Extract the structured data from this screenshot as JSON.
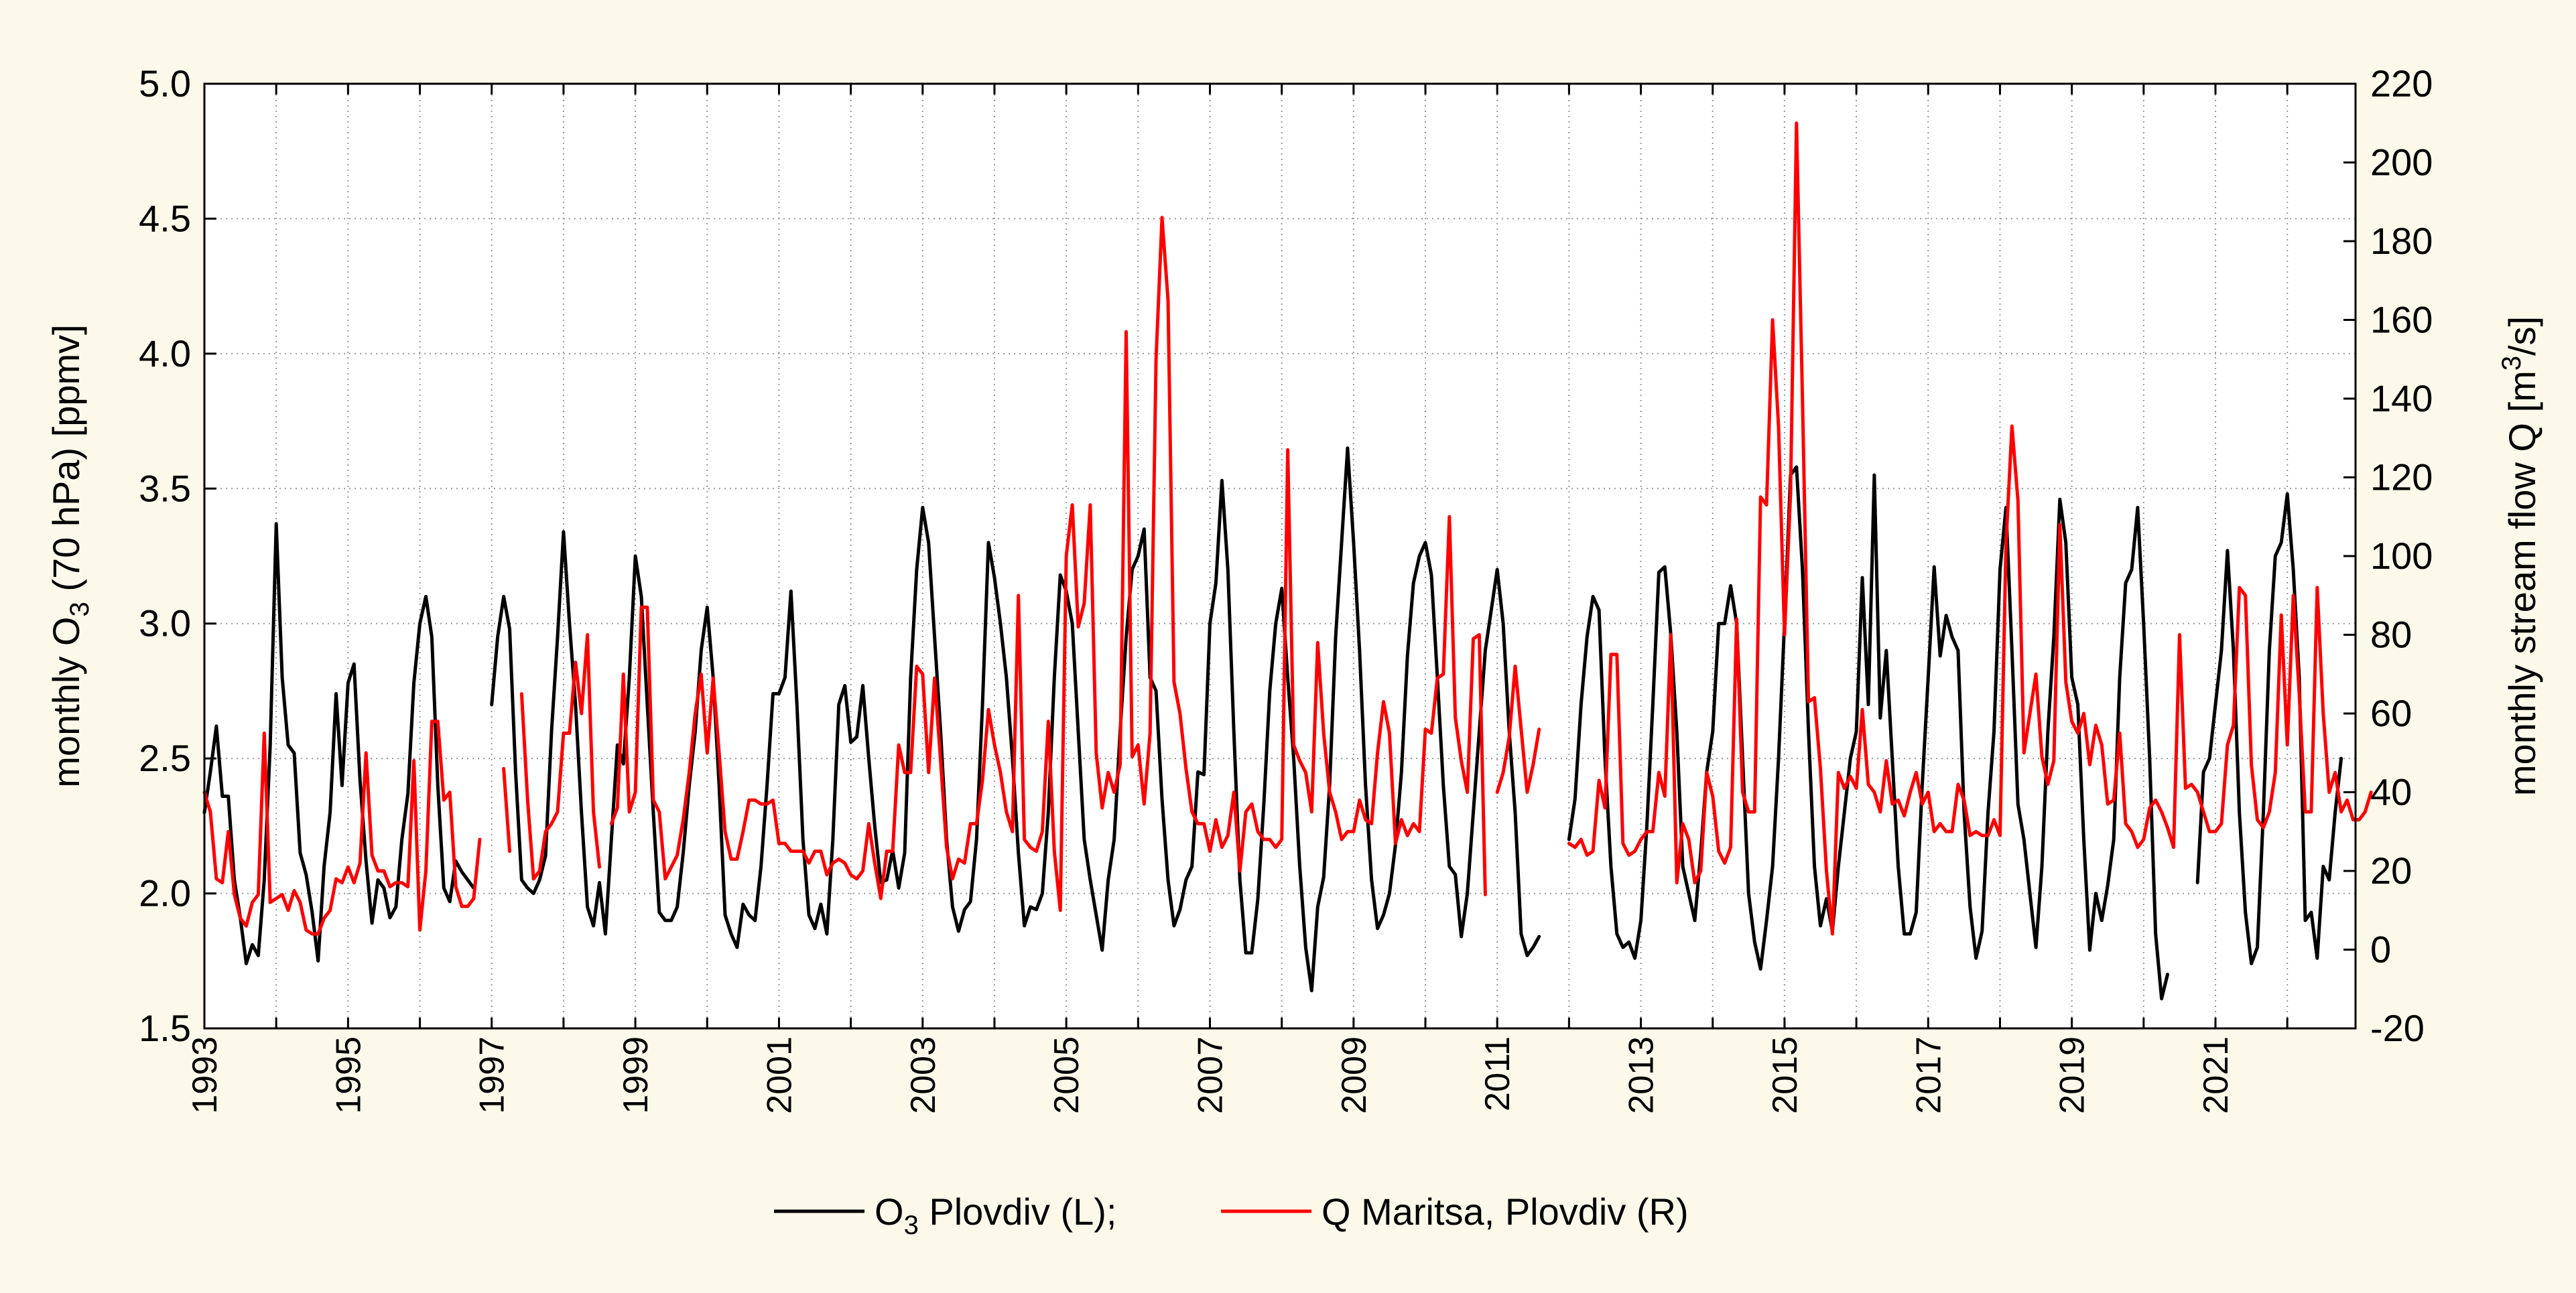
{
  "chart_data": {
    "type": "line",
    "title": "",
    "x_start_year": 1993,
    "x_end_year": 2022,
    "xlim": [
      1993,
      2022.95
    ],
    "x_tick_labels": [
      "1993",
      "1995",
      "1997",
      "1999",
      "2001",
      "2003",
      "2005",
      "2007",
      "2009",
      "2011",
      "2013",
      "2015",
      "2017",
      "2019",
      "2021"
    ],
    "ylabel_left": {
      "prefix": "monthly O",
      "sub": "3",
      "suffix": " (70 hPa) [ppmv]"
    },
    "ylabel_right": {
      "prefix": "monthly stream flow Q [m",
      "sup": "3",
      "suffix": "/s]"
    },
    "ylim_left": [
      1.5,
      5.0
    ],
    "yticks_left": [
      "1.5",
      "2.0",
      "2.5",
      "3.0",
      "3.5",
      "4.0",
      "4.5",
      "5.0"
    ],
    "ylim_right": [
      -20,
      220
    ],
    "yticks_right": [
      "-20",
      "0",
      "20",
      "40",
      "60",
      "80",
      "100",
      "120",
      "140",
      "160",
      "180",
      "200",
      "220"
    ],
    "grid": true,
    "legend": {
      "placement": "bottom",
      "o3_prefix": "O",
      "o3_sub": "3",
      "o3_suffix": " Plovdiv (L);",
      "q_label": "Q Maritsa, Plovdiv (R)"
    },
    "series": [
      {
        "name": "O3 Plovdiv (L)",
        "axis": "left",
        "color": "#000000",
        "values": [
          2.3,
          2.45,
          2.62,
          2.36,
          2.36,
          2.05,
          1.91,
          1.74,
          1.81,
          1.77,
          2.05,
          2.55,
          3.37,
          2.8,
          2.55,
          2.52,
          2.15,
          2.07,
          1.93,
          1.75,
          2.1,
          2.3,
          2.74,
          2.4,
          2.78,
          2.85,
          2.42,
          2.12,
          1.89,
          2.05,
          2.02,
          1.91,
          1.95,
          2.2,
          2.37,
          2.78,
          3.0,
          3.1,
          2.95,
          2.4,
          2.02,
          1.97,
          2.12,
          2.08,
          2.05,
          2.02,
          null,
          null,
          2.7,
          2.95,
          3.1,
          2.98,
          2.45,
          2.05,
          2.02,
          2.0,
          2.05,
          2.14,
          2.6,
          2.95,
          3.34,
          3.0,
          2.7,
          2.3,
          1.95,
          1.88,
          2.04,
          1.85,
          2.2,
          2.55,
          2.48,
          2.8,
          3.25,
          3.1,
          2.7,
          2.3,
          1.93,
          1.9,
          1.9,
          1.95,
          2.15,
          2.4,
          2.6,
          2.9,
          3.06,
          2.8,
          2.4,
          1.92,
          1.85,
          1.8,
          1.96,
          1.92,
          1.9,
          2.1,
          2.4,
          2.74,
          2.74,
          2.8,
          3.12,
          2.7,
          2.2,
          1.92,
          1.87,
          1.96,
          1.85,
          2.2,
          2.7,
          2.77,
          2.56,
          2.58,
          2.77,
          2.5,
          2.25,
          2.04,
          2.05,
          2.16,
          2.02,
          2.15,
          2.8,
          3.2,
          3.43,
          3.3,
          2.95,
          2.6,
          2.2,
          1.95,
          1.86,
          1.94,
          1.97,
          2.2,
          2.7,
          3.3,
          3.17,
          3.0,
          2.8,
          2.5,
          2.15,
          1.88,
          1.95,
          1.94,
          2.0,
          2.3,
          2.8,
          3.18,
          3.12,
          3.0,
          2.6,
          2.2,
          2.05,
          1.92,
          1.79,
          2.05,
          2.2,
          2.6,
          2.95,
          3.2,
          3.25,
          3.35,
          2.8,
          2.75,
          2.35,
          2.05,
          1.88,
          1.94,
          2.05,
          2.1,
          2.45,
          2.44,
          3.0,
          3.15,
          3.53,
          3.2,
          2.6,
          2.05,
          1.78,
          1.78,
          1.98,
          2.33,
          2.75,
          3.0,
          3.13,
          2.8,
          2.5,
          2.1,
          1.8,
          1.64,
          1.95,
          2.06,
          2.4,
          2.95,
          3.3,
          3.65,
          3.3,
          2.9,
          2.4,
          2.05,
          1.87,
          1.92,
          2.0,
          2.18,
          2.45,
          2.88,
          3.15,
          3.25,
          3.3,
          3.18,
          2.8,
          2.4,
          2.1,
          2.07,
          1.84,
          2.0,
          2.3,
          2.6,
          2.9,
          3.05,
          3.2,
          3.0,
          2.6,
          2.3,
          1.85,
          1.77,
          1.8,
          1.84,
          null,
          null,
          null,
          null,
          2.2,
          2.35,
          2.7,
          2.95,
          3.1,
          3.05,
          2.5,
          2.1,
          1.85,
          1.8,
          1.82,
          1.76,
          1.9,
          2.25,
          2.7,
          3.19,
          3.21,
          2.96,
          2.6,
          2.1,
          2.0,
          1.9,
          2.15,
          2.45,
          2.6,
          3.0,
          3.0,
          3.14,
          3.0,
          2.5,
          2.0,
          1.82,
          1.72,
          1.9,
          2.1,
          2.5,
          3.0,
          3.55,
          3.58,
          3.2,
          2.6,
          2.1,
          1.88,
          1.98,
          1.86,
          2.1,
          2.3,
          2.5,
          2.6,
          3.17,
          2.7,
          3.55,
          2.65,
          2.9,
          2.5,
          2.1,
          1.85,
          1.85,
          1.93,
          2.4,
          2.8,
          3.21,
          2.88,
          3.03,
          2.95,
          2.9,
          2.3,
          1.95,
          1.76,
          1.86,
          2.3,
          2.6,
          3.2,
          3.43,
          2.9,
          2.33,
          2.2,
          2.0,
          1.8,
          2.1,
          2.6,
          2.95,
          3.46,
          3.3,
          2.8,
          2.7,
          2.2,
          1.79,
          2.0,
          1.9,
          2.03,
          2.2,
          2.8,
          3.15,
          3.2,
          3.43,
          3.0,
          2.5,
          1.85,
          1.61,
          1.7,
          null,
          null,
          null,
          null,
          2.04,
          2.45,
          2.5,
          2.7,
          2.9,
          3.27,
          2.9,
          2.3,
          1.93,
          1.74,
          1.8,
          2.3,
          2.9,
          3.25,
          3.3,
          3.48,
          3.2,
          2.8,
          1.9,
          1.93,
          1.76,
          2.1,
          2.05,
          2.3,
          2.5
        ]
      },
      {
        "name": "Q Maritsa, Plovdiv (R)",
        "axis": "right",
        "color": "#ff0000",
        "values": [
          40,
          35,
          18,
          17,
          30,
          14,
          8,
          6,
          12,
          14,
          55,
          12,
          13,
          14,
          10,
          15,
          12,
          5,
          4,
          4,
          8,
          10,
          18,
          17,
          21,
          17,
          22,
          50,
          24,
          20,
          20,
          16,
          17,
          17,
          16,
          48,
          5,
          20,
          58,
          58,
          38,
          40,
          16,
          11,
          11,
          13,
          28,
          null,
          null,
          null,
          46,
          25,
          null,
          65,
          38,
          18,
          20,
          30,
          32,
          35,
          55,
          55,
          73,
          60,
          80,
          35,
          21,
          null,
          32,
          36,
          70,
          35,
          40,
          87,
          87,
          38,
          35,
          18,
          21,
          24,
          33,
          45,
          60,
          70,
          50,
          69,
          50,
          30,
          23,
          23,
          30,
          38,
          38,
          37,
          37,
          38,
          27,
          27,
          25,
          25,
          25,
          22,
          25,
          25,
          19,
          22,
          23,
          22,
          19,
          18,
          20,
          32,
          22,
          13,
          25,
          25,
          52,
          45,
          45,
          72,
          70,
          45,
          69,
          48,
          26,
          18,
          23,
          22,
          32,
          32,
          43,
          61,
          52,
          45,
          35,
          30,
          90,
          28,
          26,
          25,
          30,
          58,
          25,
          10,
          100,
          113,
          82,
          88,
          113,
          50,
          36,
          45,
          40,
          47,
          157,
          49,
          52,
          37,
          55,
          150,
          186,
          165,
          68,
          60,
          46,
          35,
          32,
          32,
          25,
          33,
          26,
          29,
          40,
          20,
          35,
          37,
          30,
          28,
          28,
          26,
          28,
          127,
          52,
          48,
          45,
          35,
          78,
          55,
          40,
          35,
          28,
          30,
          30,
          38,
          33,
          32,
          50,
          63,
          55,
          27,
          33,
          29,
          32,
          30,
          56,
          55,
          69,
          70,
          110,
          59,
          48,
          40,
          79,
          80,
          14,
          null,
          40,
          45,
          54,
          72,
          56,
          40,
          47,
          56,
          null,
          null,
          null,
          null,
          27,
          26,
          28,
          24,
          25,
          43,
          36,
          75,
          75,
          27,
          24,
          25,
          28,
          30,
          30,
          45,
          39,
          80,
          17,
          32,
          28,
          17,
          20,
          45,
          39,
          25,
          22,
          26,
          84,
          40,
          35,
          35,
          115,
          113,
          160,
          133,
          80,
          116,
          210,
          140,
          63,
          64,
          46,
          20,
          4,
          45,
          41,
          44,
          41,
          61,
          42,
          40,
          35,
          48,
          37,
          38,
          34,
          40,
          45,
          37,
          40,
          30,
          32,
          30,
          30,
          42,
          38,
          29,
          30,
          29,
          29,
          33,
          29,
          103,
          133,
          114,
          50,
          60,
          70,
          49,
          42,
          48,
          108,
          68,
          58,
          55,
          60,
          47,
          57,
          52,
          37,
          38,
          55,
          32,
          30,
          26,
          28,
          36,
          38,
          35,
          31,
          26,
          80,
          41,
          42,
          40,
          35,
          30,
          30,
          32,
          52,
          57,
          92,
          90,
          47,
          33,
          31,
          35,
          45,
          85,
          52,
          90,
          65,
          35,
          35,
          92,
          60,
          40,
          45,
          35,
          38,
          33,
          33,
          35,
          40
        ]
      }
    ]
  }
}
